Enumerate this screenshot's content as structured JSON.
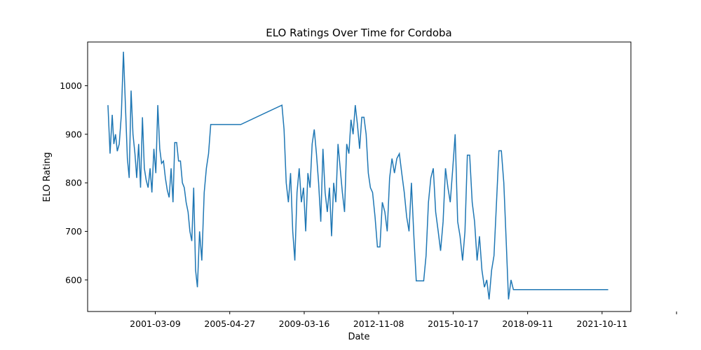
{
  "chart_data": {
    "type": "line",
    "title": "ELO Ratings Over Time for Cordoba",
    "xlabel": "Date",
    "ylabel": "ELO Rating",
    "x_tick_labels": [
      "2001-03-09",
      "2005-04-27",
      "2009-03-16",
      "2012-11-08",
      "2015-10-17",
      "2018-09-11",
      "2021-10-11",
      ""
    ],
    "y_ticks": [
      600,
      700,
      800,
      900,
      1000
    ],
    "y_tick_labels": [
      "600",
      "700",
      "800",
      "900",
      "1000"
    ],
    "ylim": [
      535,
      1090
    ],
    "xlim": [
      "1997-09-14",
      "2025-09-01"
    ],
    "grid": false,
    "color": "#1f77b4",
    "series": [
      {
        "x": [
          "1998-10-01",
          "1998-11-10",
          "1998-12-20",
          "1999-01-20",
          "1999-02-20",
          "1999-03-25",
          "1999-05-01",
          "1999-06-10",
          "1999-07-20",
          "1999-08-25",
          "1999-10-01",
          "1999-11-05",
          "1999-12-10",
          "2000-01-15",
          "2000-02-20",
          "2000-03-25",
          "2000-04-30",
          "2000-06-05",
          "2000-07-10",
          "2000-08-15",
          "2000-09-20",
          "2000-10-25",
          "2000-12-01",
          "2001-01-05",
          "2001-02-10",
          "2001-03-20",
          "2001-04-25",
          "2001-06-01",
          "2001-07-05",
          "2001-08-10",
          "2001-09-15",
          "2001-10-20",
          "2001-11-25",
          "2002-01-01",
          "2002-02-05",
          "2002-03-10",
          "2002-04-15",
          "2002-05-20",
          "2002-06-25",
          "2002-08-01",
          "2002-09-05",
          "2002-10-10",
          "2002-11-15",
          "2002-12-20",
          "2003-01-25",
          "2003-03-01",
          "2003-04-05",
          "2003-05-10",
          "2003-06-20",
          "2003-08-01",
          "2003-09-15",
          "2003-10-25",
          "2003-12-05",
          "2004-01-15",
          "2004-02-25",
          "2004-04-05",
          "2004-05-15",
          "2004-06-25",
          "2004-08-05",
          "2004-09-10",
          "2004-10-20",
          "2004-12-01",
          "2005-01-10",
          "2005-02-20",
          "2005-03-25",
          "2005-05-01",
          "2005-06-15",
          "2005-08-01",
          "2007-09-15",
          "2007-10-25",
          "2007-12-05",
          "2008-01-15",
          "2008-02-25",
          "2008-04-05",
          "2008-05-15",
          "2008-06-25",
          "2008-08-05",
          "2008-09-15",
          "2008-10-25",
          "2008-12-05",
          "2009-01-15",
          "2009-02-25",
          "2009-04-05",
          "2009-05-15",
          "2009-06-25",
          "2009-08-05",
          "2009-09-15",
          "2009-10-25",
          "2009-12-05",
          "2010-01-15",
          "2010-02-25",
          "2010-04-05",
          "2010-05-15",
          "2010-06-25",
          "2010-08-05",
          "2010-09-15",
          "2010-10-25",
          "2010-12-05",
          "2011-01-15",
          "2011-02-25",
          "2011-04-05",
          "2011-05-15",
          "2011-06-25",
          "2011-08-05",
          "2011-09-15",
          "2011-10-25",
          "2011-12-05",
          "2012-01-15",
          "2012-02-25",
          "2012-04-05",
          "2012-05-15",
          "2012-07-01",
          "2012-08-15",
          "2012-10-01",
          "2012-11-15",
          "2013-01-01",
          "2013-02-15",
          "2013-04-01",
          "2013-05-15",
          "2013-07-01",
          "2013-08-15",
          "2013-10-01",
          "2013-11-15",
          "2014-01-01",
          "2014-02-15",
          "2014-04-01",
          "2014-05-15",
          "2014-07-01",
          "2014-08-15",
          "2014-10-01",
          "2014-11-15",
          "2015-01-01",
          "2015-02-15",
          "2015-04-01",
          "2015-05-15",
          "2015-07-01",
          "2015-08-15",
          "2015-10-01",
          "2015-11-15",
          "2016-01-01",
          "2016-02-15",
          "2016-04-01",
          "2016-05-15",
          "2016-07-01",
          "2016-08-15",
          "2016-10-01",
          "2016-11-15",
          "2017-01-01",
          "2017-02-15",
          "2017-04-01",
          "2017-05-15",
          "2017-07-01",
          "2017-08-15",
          "2017-10-01",
          "2017-11-15",
          "2018-01-01",
          "2018-02-15",
          "2018-04-01",
          "2018-05-15",
          "2018-07-01",
          "2018-08-15",
          "2018-10-01",
          "2018-11-15",
          "2019-01-01",
          "2019-02-15",
          "2019-04-01",
          "2019-05-15",
          "2019-07-01",
          "2019-08-15",
          "2019-10-01",
          "2019-11-15",
          "2020-01-01",
          "2024-07-01"
        ],
        "values": [
          960,
          860,
          940,
          880,
          900,
          865,
          880,
          940,
          1070,
          960,
          850,
          810,
          990,
          900,
          860,
          810,
          880,
          790,
          935,
          830,
          805,
          790,
          830,
          780,
          870,
          820,
          960,
          870,
          840,
          845,
          810,
          785,
          770,
          830,
          760,
          883,
          883,
          845,
          845,
          800,
          790,
          760,
          740,
          700,
          680,
          790,
          620,
          585,
          700,
          640,
          780,
          830,
          860,
          920,
          920,
          920,
          920,
          920,
          920,
          920,
          920,
          920,
          920,
          920,
          920,
          920,
          920,
          920,
          960,
          910,
          800,
          760,
          820,
          700,
          640,
          780,
          830,
          760,
          790,
          700,
          820,
          790,
          880,
          910,
          860,
          800,
          720,
          870,
          780,
          740,
          790,
          690,
          800,
          760,
          880,
          830,
          780,
          740,
          880,
          860,
          930,
          900,
          960,
          920,
          870,
          935,
          935,
          900,
          820,
          790,
          780,
          730,
          668,
          668,
          760,
          740,
          700,
          810,
          850,
          820,
          850,
          860,
          820,
          780,
          730,
          700,
          800,
          690,
          598,
          598,
          598,
          598,
          650,
          760,
          810,
          830,
          740,
          700,
          660,
          720,
          830,
          790,
          760,
          830,
          900,
          720,
          690,
          640,
          700,
          857,
          857,
          760,
          720,
          640,
          690,
          620,
          585,
          600,
          560,
          620,
          650,
          760,
          866,
          866,
          800,
          680,
          560,
          600,
          580,
          580,
          580,
          580,
          580
        ]
      }
    ]
  }
}
